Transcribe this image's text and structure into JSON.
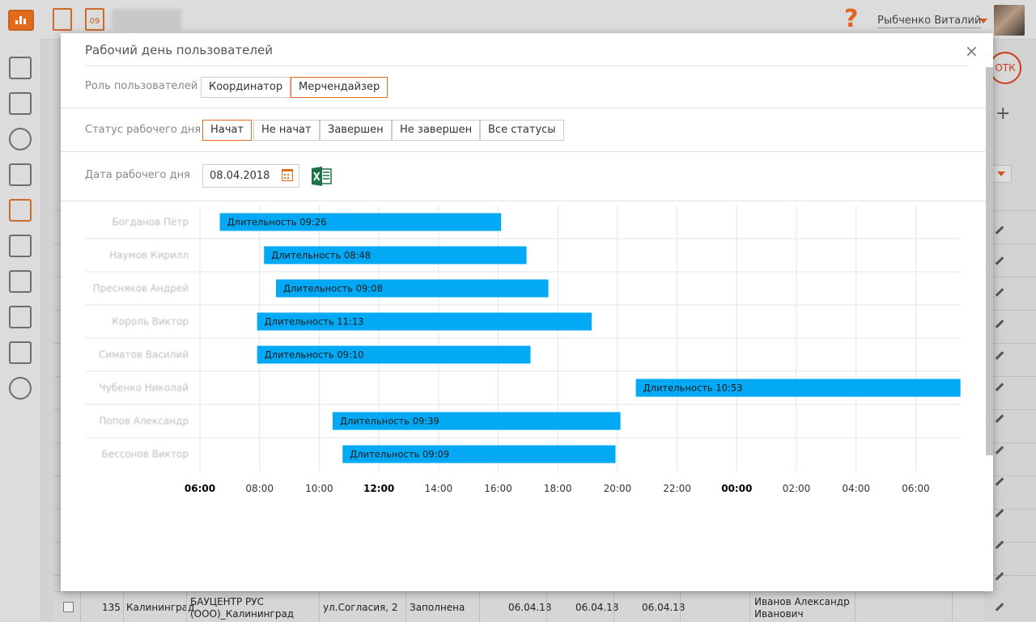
{
  "app": {
    "calendar_icon_day": "09",
    "help_label": "?",
    "user_name": "Рыбченко Виталий",
    "otk_label": "ОТК",
    "add_label": "+"
  },
  "background_row": {
    "index": "135",
    "city": "Калининград",
    "client_line1": "БАУЦЕНТР РУС",
    "client_line2": "(ООО)_Калининград",
    "address": "ул.Согласия, 2",
    "status": "Заполнена",
    "date1": "06.04.18",
    "date2": "06.04.18",
    "date3": "06.04.18",
    "person_line1": "Иванов Александр",
    "person_line2": "Иванович"
  },
  "modal": {
    "title": "Рабочий день пользователей",
    "close_label": "×",
    "role": {
      "label": "Роль пользователей",
      "options": [
        "Координатор",
        "Мерчендайзер"
      ],
      "selected": "Мерчендайзер"
    },
    "status": {
      "label": "Статус рабочего дня",
      "options": [
        "Начат",
        "Не начат",
        "Завершен",
        "Не завершен",
        "Все статусы"
      ],
      "selected": "Начат"
    },
    "date": {
      "label": "Дата рабочего дня",
      "value": "08.04.2018"
    }
  },
  "colors": {
    "accent": "#e36b1c",
    "bar": "#03a9f4",
    "excel": "#1e7145"
  },
  "chart_data": {
    "type": "bar",
    "orientation": "horizontal-timeline",
    "duration_prefix": "Длительность",
    "x_ticks": [
      "06:00",
      "08:00",
      "10:00",
      "12:00",
      "14:00",
      "16:00",
      "18:00",
      "20:00",
      "22:00",
      "00:00",
      "02:00",
      "04:00",
      "06:00"
    ],
    "x_ticks_bold": [
      "06:00",
      "12:00",
      "00:00"
    ],
    "x_range_hours": [
      6,
      30
    ],
    "rows": [
      {
        "name": "Богданов Пётр",
        "start": "06:40",
        "end": "16:06",
        "duration": "09:26"
      },
      {
        "name": "Наумов Кирилл",
        "start": "08:09",
        "end": "16:57",
        "duration": "08:48"
      },
      {
        "name": "Пресняков Андрей",
        "start": "08:33",
        "end": "17:41",
        "duration": "09:08"
      },
      {
        "name": "Король Виктор",
        "start": "07:55",
        "end": "19:08",
        "duration": "11:13"
      },
      {
        "name": "Симатов Василий",
        "start": "07:55",
        "end": "17:05",
        "duration": "09:10"
      },
      {
        "name": "Чубенко Николай",
        "start": "20:37",
        "end": "07:30",
        "duration": "10:53"
      },
      {
        "name": "Попов Александр",
        "start": "10:27",
        "end": "20:06",
        "duration": "09:39"
      },
      {
        "name": "Бессонов Виктор",
        "start": "10:47",
        "end": "19:56",
        "duration": "09:09"
      }
    ]
  }
}
